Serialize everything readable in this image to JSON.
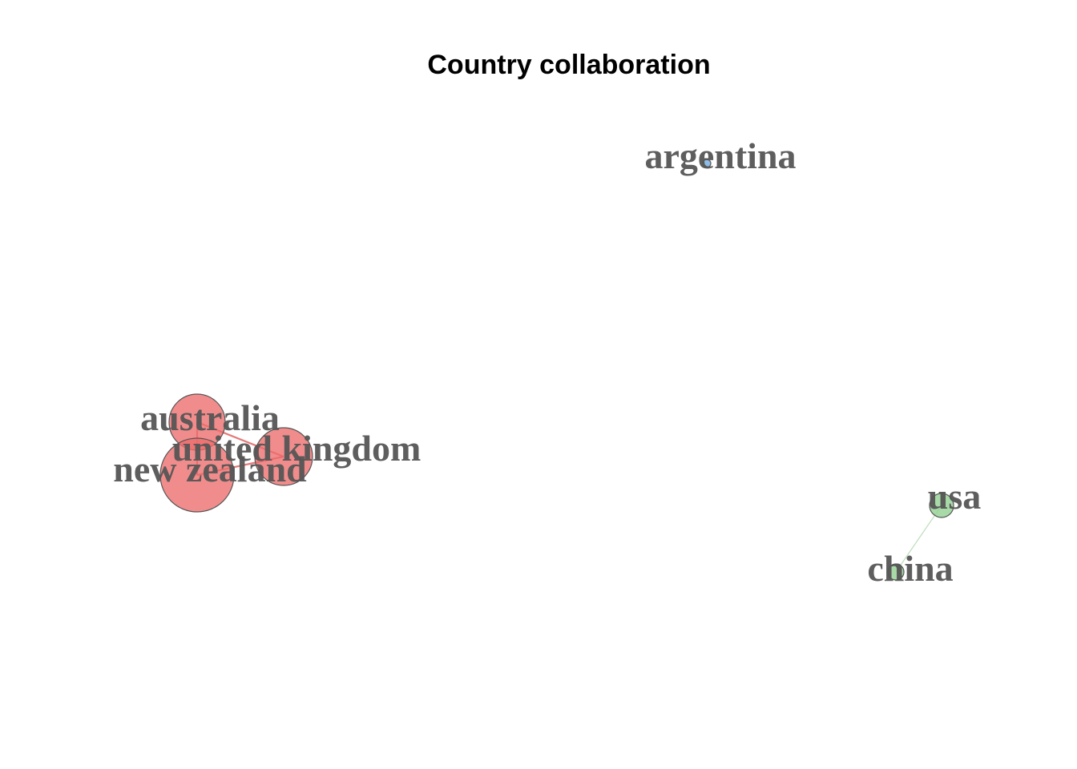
{
  "title": "Country collaboration",
  "groups": [
    {
      "id": "cluster-red",
      "color": "#ed6c6c"
    },
    {
      "id": "cluster-green",
      "color": "#8fcf8f"
    },
    {
      "id": "cluster-blue",
      "color": "#6fa8dc"
    }
  ],
  "nodes": [
    {
      "id": "australia",
      "label": "australia",
      "group": "cluster-red"
    },
    {
      "id": "united-kingdom",
      "label": "united kingdom",
      "group": "cluster-red"
    },
    {
      "id": "new-zealand",
      "label": "new zealand",
      "group": "cluster-red"
    },
    {
      "id": "argentina",
      "label": "argentina",
      "group": "cluster-blue"
    },
    {
      "id": "usa",
      "label": "usa",
      "group": "cluster-green"
    },
    {
      "id": "china",
      "label": "china",
      "group": "cluster-green"
    }
  ],
  "edges": [
    {
      "source": "australia",
      "target": "united-kingdom"
    },
    {
      "source": "australia",
      "target": "new-zealand"
    },
    {
      "source": "new-zealand",
      "target": "united-kingdom"
    },
    {
      "source": "usa",
      "target": "china"
    }
  ]
}
